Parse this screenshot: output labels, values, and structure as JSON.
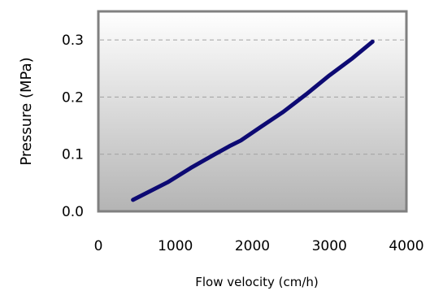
{
  "chart_data": {
    "type": "line",
    "title": "",
    "xlabel": "Flow velocity (cm/h)",
    "ylabel": "Pressure (MPa)",
    "xlim": [
      0,
      4000
    ],
    "ylim": [
      0,
      0.35
    ],
    "xticks": [
      0,
      1000,
      2000,
      3000,
      4000
    ],
    "xtick_labels": [
      "0",
      "1000",
      "2000",
      "3000",
      "4000"
    ],
    "yticks": [
      0,
      0.1,
      0.2,
      0.3
    ],
    "ytick_labels": [
      "0.0",
      "0.1",
      "0.2",
      "0.3"
    ],
    "grid": "horizontal dashed",
    "legend": "none",
    "series": [
      {
        "color": "#0d0a73",
        "x": [
          450,
          900,
          1200,
          1500,
          1700,
          1850,
          2100,
          2400,
          2700,
          3000,
          3300,
          3560
        ],
        "y": [
          0.02,
          0.051,
          0.076,
          0.099,
          0.114,
          0.124,
          0.147,
          0.174,
          0.205,
          0.238,
          0.268,
          0.297
        ]
      }
    ]
  },
  "colors": {
    "plot_gradient_top": "#ffffff",
    "plot_gradient_bottom": "#b4b4b4",
    "plot_border": "#808080",
    "gridline": "#a0a0a0"
  }
}
